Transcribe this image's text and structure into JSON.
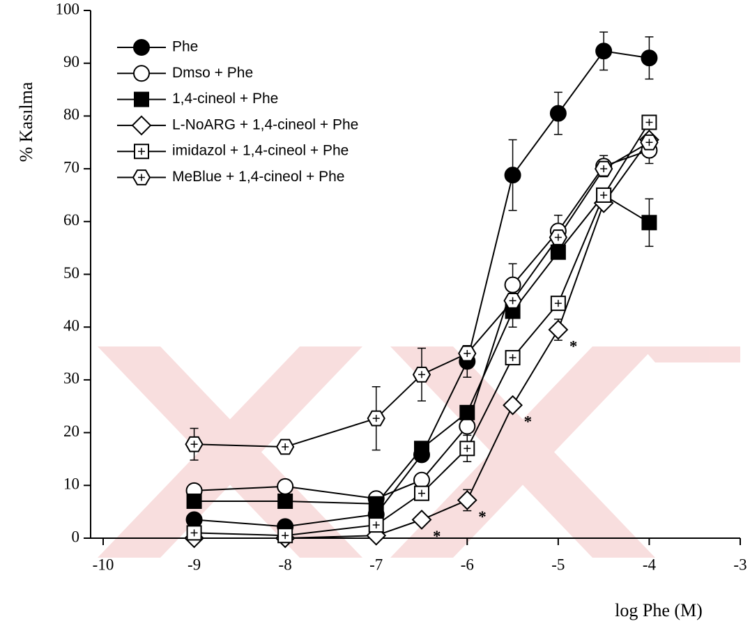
{
  "chart_data": {
    "type": "line",
    "y_label": "% Kasılma",
    "x_label": "log Phe  (M)",
    "x": [
      -9,
      -8,
      -7,
      -6.5,
      -6,
      -5.5,
      -5,
      -4.5,
      -4
    ],
    "xlim": [
      -10,
      -3
    ],
    "xticks": [
      -10,
      -9,
      -8,
      -7,
      -6,
      -5,
      -4,
      -3
    ],
    "ylim": [
      0,
      100
    ],
    "yticks": [
      0,
      10,
      20,
      30,
      40,
      50,
      60,
      70,
      80,
      90,
      100
    ],
    "legend": "upper left",
    "series": [
      {
        "name": "Phe",
        "color": "#000",
        "marker": "filled-circle",
        "values": [
          3.5,
          2.2,
          4.5,
          15.8,
          33.5,
          68.8,
          80.5,
          92.3,
          91
        ],
        "errors": [
          null,
          null,
          null,
          null,
          3,
          6.7,
          4,
          3.6,
          4
        ]
      },
      {
        "name": "Dmso + Phe",
        "color": "#000",
        "marker": "open-circle",
        "values": [
          9,
          9.8,
          7.5,
          11,
          21.2,
          48,
          58.2,
          70.5,
          73.5
        ],
        "errors": [
          null,
          null,
          null,
          null,
          null,
          4,
          3,
          2,
          2.5
        ]
      },
      {
        "name": "1,4-cineol + Phe",
        "color": "#000",
        "marker": "filled-square",
        "values": [
          7,
          7,
          6.5,
          17,
          23.8,
          43,
          54.2,
          65,
          59.8
        ],
        "errors": [
          null,
          null,
          null,
          null,
          null,
          3,
          null,
          null,
          4.5
        ]
      },
      {
        "name": "L-NoARG + 1,4-cineol + Phe",
        "color": "#000",
        "marker": "open-diamond",
        "values": [
          0,
          0,
          0.5,
          3.5,
          7.2,
          25.2,
          39.5,
          63.5,
          75.5
        ],
        "errors": [
          null,
          null,
          null,
          null,
          2,
          null,
          2,
          null,
          null
        ],
        "annotations": [
          null,
          null,
          null,
          "*",
          "*",
          "*",
          "*",
          null,
          null
        ]
      },
      {
        "name": "imidazol + 1,4-cineol + Phe",
        "color": "#000",
        "marker": "open-square-plus",
        "values": [
          1,
          0.5,
          2.5,
          8.5,
          17,
          34.2,
          44.5,
          65,
          78.8
        ],
        "errors": [
          null,
          null,
          null,
          null,
          2.5,
          null,
          null,
          null,
          null
        ]
      },
      {
        "name": "MeBlue + 1,4-cineol + Phe",
        "color": "#000",
        "marker": "open-hexagon-plus",
        "values": [
          17.8,
          17.3,
          22.7,
          31,
          35,
          45,
          57,
          70,
          75
        ],
        "errors": [
          3,
          null,
          6,
          5,
          1.5,
          null,
          null,
          null,
          null
        ]
      }
    ]
  }
}
